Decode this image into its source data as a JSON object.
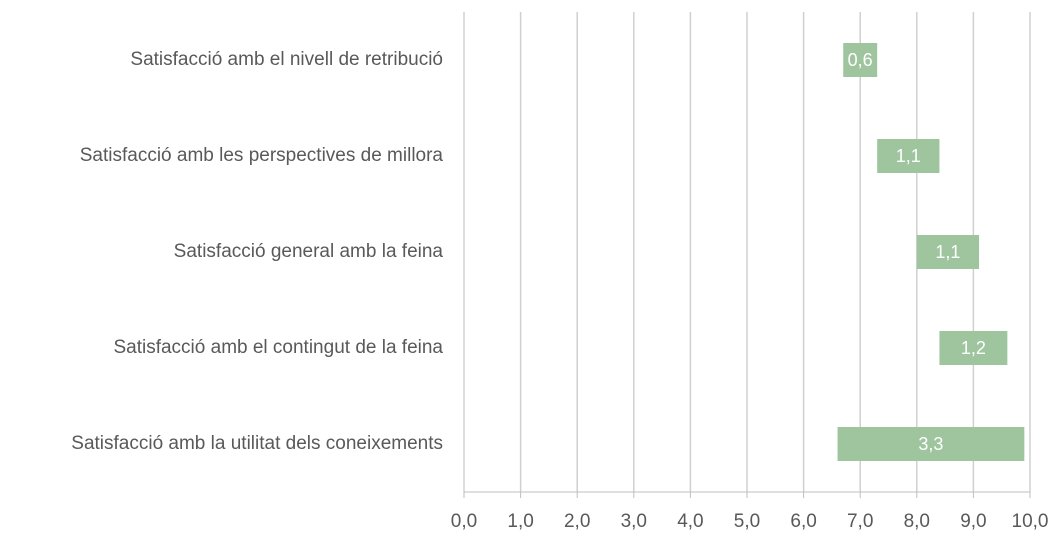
{
  "chart_data": {
    "type": "floating-bar",
    "orientation": "horizontal",
    "categories": [
      "Satisfacció amb el nivell de retribució",
      "Satisfacció amb les perspectives de millora",
      "Satisfacció general amb la feina",
      "Satisfacció amb el contingut de la feina",
      "Satisfacció amb la utilitat dels coneixements"
    ],
    "starts": [
      6.7,
      7.3,
      8.0,
      8.4,
      6.6
    ],
    "values": [
      0.6,
      1.1,
      1.1,
      1.2,
      3.3
    ],
    "value_labels": [
      "0,6",
      "1,1",
      "1,1",
      "1,2",
      "3,3"
    ],
    "color": "#9fc59f",
    "xlim": [
      0,
      10
    ],
    "xticks": [
      {
        "value": 0,
        "label": "0,0"
      },
      {
        "value": 1,
        "label": "1,0"
      },
      {
        "value": 2,
        "label": "2,0"
      },
      {
        "value": 3,
        "label": "3,0"
      },
      {
        "value": 4,
        "label": "4,0"
      },
      {
        "value": 5,
        "label": "5,0"
      },
      {
        "value": 6,
        "label": "6,0"
      },
      {
        "value": 7,
        "label": "7,0"
      },
      {
        "value": 8,
        "label": "8,0"
      },
      {
        "value": 9,
        "label": "9,0"
      },
      {
        "value": 10,
        "label": "10,0"
      }
    ],
    "grid": true
  }
}
